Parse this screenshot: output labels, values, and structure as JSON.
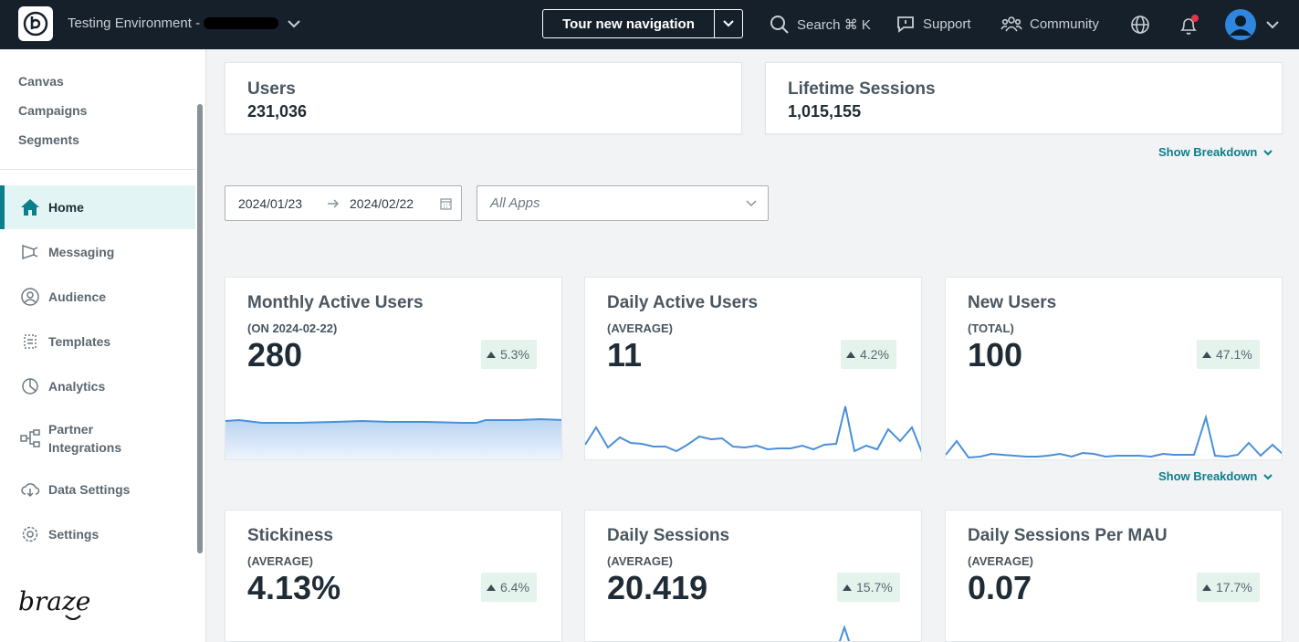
{
  "topbar": {
    "env_label": "Testing Environment -",
    "tour_label": "Tour new navigation",
    "search_label": "Search ⌘ K",
    "support_label": "Support",
    "community_label": "Community",
    "notification_dot_color": "#e8344a"
  },
  "sidebar": {
    "top_links": [
      "Canvas",
      "Campaigns",
      "Segments"
    ],
    "items": [
      {
        "label": "Home",
        "icon": "home-icon"
      },
      {
        "label": "Messaging",
        "icon": "megaphone-icon"
      },
      {
        "label": "Audience",
        "icon": "audience-icon"
      },
      {
        "label": "Templates",
        "icon": "templates-icon"
      },
      {
        "label": "Analytics",
        "icon": "pie-chart-icon"
      },
      {
        "label": "Partner\nIntegrations",
        "icon": "integrations-icon"
      },
      {
        "label": "Data Settings",
        "icon": "cloud-icon"
      },
      {
        "label": "Settings",
        "icon": "gear-icon"
      }
    ],
    "brand": "braze"
  },
  "summary": {
    "users_title": "Users",
    "users_value": "231,036",
    "sessions_title": "Lifetime Sessions",
    "sessions_value": "1,015,155",
    "breakdown_label": "Show Breakdown"
  },
  "filters": {
    "start_date": "2024/01/23",
    "end_date": "2024/02/22",
    "apps_placeholder": "All Apps"
  },
  "metrics": [
    {
      "title": "Monthly Active Users",
      "sub": "(ON 2024-02-22)",
      "value": "280",
      "change": "5.3%"
    },
    {
      "title": "Daily Active Users",
      "sub": "(AVERAGE)",
      "value": "11",
      "change": "4.2%"
    },
    {
      "title": "New Users",
      "sub": "(TOTAL)",
      "value": "100",
      "change": "47.1%"
    },
    {
      "title": "Stickiness",
      "sub": "(AVERAGE)",
      "value": "4.13%",
      "change": "6.4%"
    },
    {
      "title": "Daily Sessions",
      "sub": "(AVERAGE)",
      "value": "20.419",
      "change": "15.7%"
    },
    {
      "title": "Daily Sessions Per MAU",
      "sub": "(AVERAGE)",
      "value": "0.07",
      "change": "17.7%"
    }
  ],
  "breakdown2_label": "Show Breakdown",
  "colors": {
    "accent": "#0b7f8c",
    "topbar": "#16202b",
    "spark_line": "#4a90d9"
  }
}
